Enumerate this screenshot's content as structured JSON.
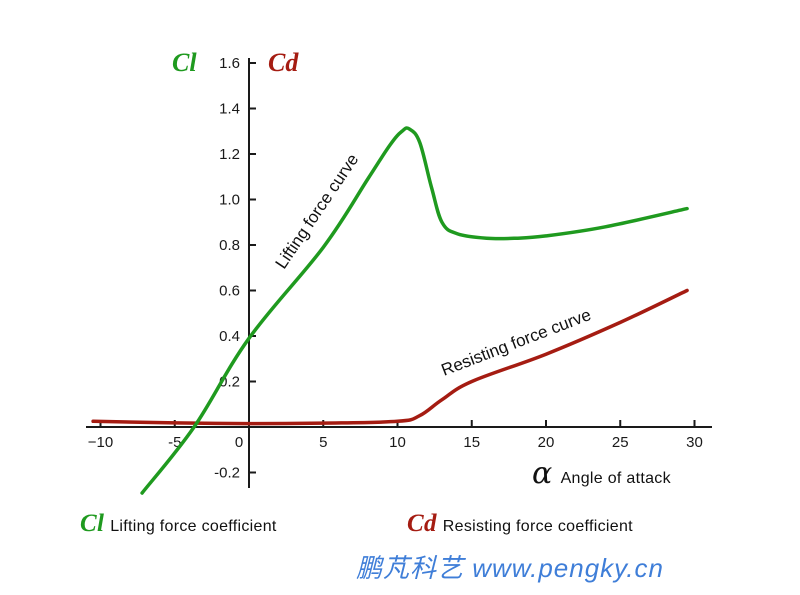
{
  "chart_data": {
    "type": "line",
    "title": "",
    "xlabel": "Angle of attack",
    "xlabel_symbol": "α",
    "ylabel_left": "Cl",
    "ylabel_right": "Cd",
    "xlim": [
      -10.5,
      30.5
    ],
    "ylim": [
      -0.3,
      1.65
    ],
    "x_ticks": [
      -10,
      -5,
      0,
      5,
      10,
      15,
      20,
      25,
      30
    ],
    "y_ticks": [
      -0.2,
      0.2,
      0.4,
      0.6,
      0.8,
      1.0,
      1.2,
      1.4,
      1.6
    ],
    "x_tick_labels": [
      "−10",
      "-5",
      "0",
      "5",
      "10",
      "15",
      "20",
      "25",
      "30"
    ],
    "y_tick_labels": [
      "-0.2",
      "0.2",
      "0.4",
      "0.6",
      "0.8",
      "1.0",
      "1.2",
      "1.4",
      "1.6"
    ],
    "grid": false,
    "series": [
      {
        "name": "Lifting force curve",
        "symbol": "Cl",
        "color": "#1f9a1f",
        "x": [
          -7.2,
          -3.7,
          0,
          5,
          8,
          9.5,
          10.3,
          10.8,
          11.5,
          12.3,
          13,
          14,
          16,
          18,
          20,
          24,
          29.5
        ],
        "values": [
          -0.29,
          0.0,
          0.39,
          0.79,
          1.09,
          1.24,
          1.3,
          1.31,
          1.25,
          1.05,
          0.9,
          0.85,
          0.83,
          0.83,
          0.84,
          0.88,
          0.96
        ]
      },
      {
        "name": "Resisting force curve",
        "symbol": "Cd",
        "color": "#a51c12",
        "x": [
          -10.5,
          -5,
          0,
          5,
          10,
          11.5,
          13,
          15,
          20,
          25,
          29.5
        ],
        "values": [
          0.025,
          0.018,
          0.015,
          0.017,
          0.025,
          0.05,
          0.12,
          0.2,
          0.32,
          0.46,
          0.6
        ]
      }
    ],
    "annotations": [
      "Lifting force curve",
      "Resisting force curve"
    ],
    "legend": [
      {
        "symbol": "Cl",
        "label": "Lifting force coefficient",
        "color": "#1f9a1f"
      },
      {
        "symbol": "Cd",
        "label": "Resisting force coefficient",
        "color": "#a51c12"
      }
    ],
    "legend_position": "bottom"
  },
  "labels": {
    "cl_symbol": "Cl",
    "cd_symbol": "Cd",
    "alpha_symbol": "α",
    "x_axis_title": "Angle of attack",
    "lift_curve_label": "Lifting force curve",
    "drag_curve_label": "Resisting force curve",
    "legend_cl_text": "Lifting force coefficient",
    "legend_cd_text": "Resisting force coefficient",
    "watermark": "鹏芃科艺 www.pengky.cn"
  },
  "colors": {
    "lift": "#1f9a1f",
    "drag": "#a51c12",
    "watermark": "#3f7ed8",
    "axis": "#1a1a1a"
  }
}
